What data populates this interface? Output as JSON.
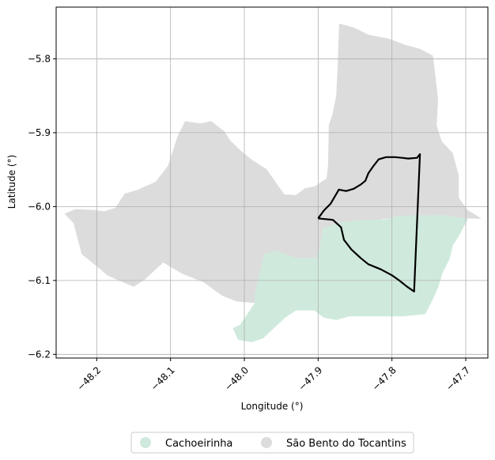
{
  "chart_data": {
    "type": "map",
    "xlabel": "Longitude (°)",
    "ylabel": "Latitude (°)",
    "xlim": [
      -48.255,
      -47.67
    ],
    "ylim": [
      -6.205,
      -5.73
    ],
    "grid": true,
    "x_ticks": [
      {
        "value": -48.2,
        "label": "−48.2"
      },
      {
        "value": -48.1,
        "label": "−48.1"
      },
      {
        "value": -48.0,
        "label": "−48.0"
      },
      {
        "value": -47.9,
        "label": "−47.9"
      },
      {
        "value": -47.8,
        "label": "−47.8"
      },
      {
        "value": -47.7,
        "label": "−47.7"
      }
    ],
    "y_ticks": [
      {
        "value": -5.8,
        "label": "−5.8"
      },
      {
        "value": -5.9,
        "label": "−5.9"
      },
      {
        "value": -6.0,
        "label": "−6.0"
      },
      {
        "value": -6.1,
        "label": "−6.1"
      },
      {
        "value": -6.2,
        "label": "−6.2"
      }
    ],
    "legend_position": "bottom-center",
    "regions": [
      {
        "name": "São Bento do Tocantins",
        "color": "#dcdcdc",
        "polygon": [
          [
            -47.871,
            -5.753
          ],
          [
            -47.852,
            -5.758
          ],
          [
            -47.832,
            -5.768
          ],
          [
            -47.805,
            -5.773
          ],
          [
            -47.784,
            -5.781
          ],
          [
            -47.762,
            -5.787
          ],
          [
            -47.745,
            -5.796
          ],
          [
            -47.742,
            -5.82
          ],
          [
            -47.738,
            -5.855
          ],
          [
            -47.74,
            -5.89
          ],
          [
            -47.733,
            -5.912
          ],
          [
            -47.718,
            -5.928
          ],
          [
            -47.71,
            -5.958
          ],
          [
            -47.71,
            -5.988
          ],
          [
            -47.698,
            -6.005
          ],
          [
            -47.68,
            -6.016
          ],
          [
            -47.79,
            -6.013
          ],
          [
            -47.893,
            -6.03
          ],
          [
            -47.9,
            -6.07
          ],
          [
            -47.93,
            -6.07
          ],
          [
            -47.958,
            -6.06
          ],
          [
            -47.973,
            -6.065
          ],
          [
            -47.985,
            -6.117
          ],
          [
            -47.985,
            -6.13
          ],
          [
            -48.01,
            -6.128
          ],
          [
            -48.03,
            -6.12
          ],
          [
            -48.055,
            -6.102
          ],
          [
            -48.085,
            -6.09
          ],
          [
            -48.11,
            -6.075
          ],
          [
            -48.135,
            -6.098
          ],
          [
            -48.15,
            -6.108
          ],
          [
            -48.185,
            -6.093
          ],
          [
            -48.2,
            -6.08
          ],
          [
            -48.22,
            -6.064
          ],
          [
            -48.231,
            -6.022
          ],
          [
            -48.243,
            -6.01
          ],
          [
            -48.229,
            -6.004
          ],
          [
            -48.203,
            -6.005
          ],
          [
            -48.19,
            -6.007
          ],
          [
            -48.174,
            -6.002
          ],
          [
            -48.162,
            -5.983
          ],
          [
            -48.145,
            -5.978
          ],
          [
            -48.12,
            -5.967
          ],
          [
            -48.103,
            -5.945
          ],
          [
            -48.09,
            -5.905
          ],
          [
            -48.08,
            -5.885
          ],
          [
            -48.06,
            -5.888
          ],
          [
            -48.045,
            -5.885
          ],
          [
            -48.028,
            -5.898
          ],
          [
            -48.02,
            -5.91
          ],
          [
            -48.005,
            -5.925
          ],
          [
            -47.99,
            -5.937
          ],
          [
            -47.97,
            -5.95
          ],
          [
            -47.954,
            -5.973
          ],
          [
            -47.946,
            -5.984
          ],
          [
            -47.93,
            -5.985
          ],
          [
            -47.918,
            -5.976
          ],
          [
            -47.904,
            -5.973
          ],
          [
            -47.888,
            -5.962
          ],
          [
            -47.886,
            -5.944
          ],
          [
            -47.885,
            -5.89
          ],
          [
            -47.88,
            -5.875
          ],
          [
            -47.875,
            -5.85
          ],
          [
            -47.873,
            -5.81
          ]
        ]
      },
      {
        "name": "Cachoeirinha",
        "color": "#cfeadc",
        "polygon": [
          [
            -47.893,
            -6.03
          ],
          [
            -47.87,
            -6.022
          ],
          [
            -47.845,
            -6.019
          ],
          [
            -47.81,
            -6.018
          ],
          [
            -47.79,
            -6.013
          ],
          [
            -47.73,
            -6.012
          ],
          [
            -47.698,
            -6.017
          ],
          [
            -47.71,
            -6.04
          ],
          [
            -47.718,
            -6.052
          ],
          [
            -47.722,
            -6.07
          ],
          [
            -47.732,
            -6.09
          ],
          [
            -47.738,
            -6.11
          ],
          [
            -47.745,
            -6.125
          ],
          [
            -47.755,
            -6.145
          ],
          [
            -47.785,
            -6.148
          ],
          [
            -47.83,
            -6.148
          ],
          [
            -47.858,
            -6.148
          ],
          [
            -47.875,
            -6.153
          ],
          [
            -47.892,
            -6.15
          ],
          [
            -47.905,
            -6.14
          ],
          [
            -47.93,
            -6.14
          ],
          [
            -47.945,
            -6.15
          ],
          [
            -47.958,
            -6.162
          ],
          [
            -47.975,
            -6.178
          ],
          [
            -47.99,
            -6.183
          ],
          [
            -48.008,
            -6.18
          ],
          [
            -48.015,
            -6.165
          ],
          [
            -48.005,
            -6.16
          ],
          [
            -47.985,
            -6.13
          ],
          [
            -47.985,
            -6.117
          ],
          [
            -47.973,
            -6.065
          ],
          [
            -47.958,
            -6.06
          ],
          [
            -47.93,
            -6.07
          ],
          [
            -47.9,
            -6.07
          ]
        ]
      }
    ],
    "outline": {
      "color": "#000000",
      "points": [
        [
          -47.9,
          -6.016
        ],
        [
          -47.892,
          -6.005
        ],
        [
          -47.883,
          -5.996
        ],
        [
          -47.872,
          -5.977
        ],
        [
          -47.862,
          -5.979
        ],
        [
          -47.852,
          -5.976
        ],
        [
          -47.842,
          -5.97
        ],
        [
          -47.836,
          -5.965
        ],
        [
          -47.832,
          -5.955
        ],
        [
          -47.825,
          -5.945
        ],
        [
          -47.818,
          -5.936
        ],
        [
          -47.808,
          -5.933
        ],
        [
          -47.796,
          -5.933
        ],
        [
          -47.786,
          -5.934
        ],
        [
          -47.778,
          -5.935
        ],
        [
          -47.766,
          -5.934
        ],
        [
          -47.762,
          -5.929
        ],
        [
          -47.77,
          -6.115
        ],
        [
          -47.78,
          -6.108
        ],
        [
          -47.79,
          -6.1
        ],
        [
          -47.8,
          -6.093
        ],
        [
          -47.815,
          -6.085
        ],
        [
          -47.832,
          -6.078
        ],
        [
          -47.842,
          -6.07
        ],
        [
          -47.855,
          -6.058
        ],
        [
          -47.865,
          -6.045
        ],
        [
          -47.869,
          -6.028
        ],
        [
          -47.88,
          -6.018
        ],
        [
          -47.9,
          -6.016
        ]
      ]
    },
    "legend": [
      {
        "label": "Cachoeirinha",
        "color": "#cfeadc"
      },
      {
        "label": "São Bento do Tocantins",
        "color": "#dcdcdc"
      }
    ]
  }
}
